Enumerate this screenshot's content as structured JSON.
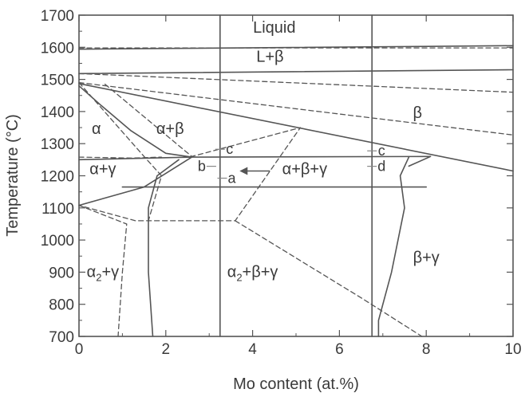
{
  "chart_data": {
    "type": "line",
    "title": "",
    "xlabel": "Mo content (at.%)",
    "ylabel": "Temperature (°C)",
    "xlim": [
      0,
      10
    ],
    "ylim": [
      700,
      1700
    ],
    "x_ticks": [
      0,
      2,
      4,
      6,
      8,
      10
    ],
    "y_ticks": [
      700,
      800,
      900,
      1000,
      1100,
      1200,
      1300,
      1400,
      1500,
      1600,
      1700
    ],
    "grid": false,
    "line_color": "#555555",
    "series": [
      {
        "style": "solid",
        "points": [
          [
            0,
            1594
          ],
          [
            10,
            1605
          ]
        ]
      },
      {
        "style": "dashed",
        "points": [
          [
            0,
            1598
          ],
          [
            10,
            1598
          ]
        ]
      },
      {
        "style": "solid",
        "points": [
          [
            0,
            1518
          ],
          [
            10,
            1530
          ]
        ]
      },
      {
        "style": "dashed",
        "points": [
          [
            0,
            1518
          ],
          [
            10,
            1460
          ]
        ]
      },
      {
        "style": "solid",
        "points": [
          [
            0,
            1487
          ],
          [
            10,
            1215
          ]
        ]
      },
      {
        "style": "dashed",
        "points": [
          [
            0,
            1490
          ],
          [
            10,
            1327
          ]
        ]
      },
      {
        "style": "solid",
        "points": [
          [
            0,
            1480
          ],
          [
            0.5,
            1420
          ],
          [
            1.2,
            1340
          ],
          [
            2,
            1270
          ],
          [
            2.6,
            1258
          ]
        ]
      },
      {
        "style": "dashed",
        "points": [
          [
            0,
            1490
          ],
          [
            1.5,
            1260
          ],
          [
            1.9,
            1200
          ],
          [
            1.6,
            1060
          ]
        ]
      },
      {
        "style": "dashed",
        "points": [
          [
            0.6,
            1485
          ],
          [
            2.6,
            1260
          ],
          [
            5.1,
            1350
          ],
          [
            3.6,
            1060
          ],
          [
            1.3,
            1060
          ],
          [
            0,
            1108
          ]
        ]
      },
      {
        "style": "dashed",
        "points": [
          [
            0,
            1258
          ],
          [
            1.2,
            1255
          ],
          [
            1.9,
            1258
          ]
        ]
      },
      {
        "style": "solid",
        "points": [
          [
            0,
            1250
          ],
          [
            2.6,
            1258
          ],
          [
            8.1,
            1260
          ],
          [
            7.6,
            1230
          ]
        ]
      },
      {
        "style": "solid",
        "points": [
          [
            1.0,
            1165
          ],
          [
            8.0,
            1165
          ]
        ]
      },
      {
        "style": "solid",
        "points": [
          [
            0,
            1108
          ],
          [
            1.5,
            1165
          ],
          [
            2.6,
            1258
          ]
        ]
      },
      {
        "style": "solid",
        "points": [
          [
            2.3,
            1250
          ],
          [
            1.8,
            1200
          ],
          [
            1.6,
            1100
          ],
          [
            1.6,
            900
          ],
          [
            1.7,
            700
          ]
        ]
      },
      {
        "style": "dashed",
        "points": [
          [
            0,
            1108
          ],
          [
            1.1,
            1050
          ],
          [
            1.0,
            900
          ],
          [
            0.9,
            700
          ]
        ]
      },
      {
        "style": "dashed",
        "points": [
          [
            3.6,
            1060
          ],
          [
            6.5,
            820
          ],
          [
            7.9,
            700
          ]
        ]
      },
      {
        "style": "solid",
        "points": [
          [
            7.6,
            1258
          ],
          [
            7.4,
            1200
          ],
          [
            7.5,
            1100
          ],
          [
            7.2,
            900
          ],
          [
            6.9,
            750
          ],
          [
            6.9,
            700
          ]
        ]
      },
      {
        "style": "solid",
        "points": [
          [
            3.25,
            700
          ],
          [
            3.25,
            1700
          ]
        ]
      },
      {
        "style": "solid",
        "points": [
          [
            6.75,
            700
          ],
          [
            6.75,
            1700
          ]
        ]
      }
    ],
    "region_labels": [
      {
        "text": "Liquid",
        "x": 4.5,
        "y": 1645
      },
      {
        "text": "L+β",
        "x": 4.4,
        "y": 1555
      },
      {
        "text": "β",
        "x": 7.8,
        "y": 1380
      },
      {
        "text": "α",
        "x": 0.4,
        "y": 1330
      },
      {
        "text": "α+β",
        "x": 2.1,
        "y": 1330
      },
      {
        "text": "α+γ",
        "x": 0.55,
        "y": 1205
      },
      {
        "text": "α+β+γ",
        "x": 5.2,
        "y": 1205
      },
      {
        "text": "α2+γ",
        "x": 0.55,
        "y": 885
      },
      {
        "text": "α2+β+γ",
        "x": 4.0,
        "y": 885
      },
      {
        "text": "β+γ",
        "x": 8.0,
        "y": 930
      }
    ],
    "point_markers": [
      {
        "text": "c",
        "x": 3.25,
        "y": 1290
      },
      {
        "text": "b",
        "x": 3.05,
        "y": 1237
      },
      {
        "text": "a",
        "x": 3.3,
        "y": 1200
      },
      {
        "text": "c",
        "x": 6.75,
        "y": 1285
      },
      {
        "text": "d",
        "x": 6.75,
        "y": 1237
      }
    ]
  }
}
